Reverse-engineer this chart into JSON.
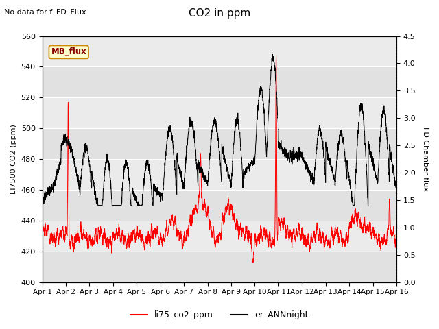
{
  "title": "CO2 in ppm",
  "top_left_text": "No data for f_FD_Flux",
  "ylabel_left": "LI7500 CO2 (ppm)",
  "ylabel_right": "FD Chamber flux",
  "ylim_left": [
    400,
    560
  ],
  "ylim_right": [
    0.0,
    4.5
  ],
  "yticks_left": [
    400,
    420,
    440,
    460,
    480,
    500,
    520,
    540,
    560
  ],
  "yticks_right": [
    0.0,
    0.5,
    1.0,
    1.5,
    2.0,
    2.5,
    3.0,
    3.5,
    4.0,
    4.5
  ],
  "xtick_labels": [
    "Apr 1",
    "Apr 2",
    "Apr 3",
    "Apr 4",
    "Apr 5",
    "Apr 6",
    "Apr 7",
    "Apr 8",
    "Apr 9",
    "Apr 10",
    "Apr 11",
    "Apr 12",
    "Apr 13",
    "Apr 14",
    "Apr 15",
    "Apr 16"
  ],
  "legend_entries": [
    "li75_co2_ppm",
    "er_ANNnight"
  ],
  "legend_colors": [
    "red",
    "black"
  ],
  "line1_color": "red",
  "line2_color": "black",
  "bg_color": "#ebebeb",
  "box_label": "MB_flux",
  "box_facecolor": "#ffffcc",
  "box_edgecolor": "#cc8800",
  "figsize": [
    6.4,
    4.8
  ],
  "dpi": 100
}
